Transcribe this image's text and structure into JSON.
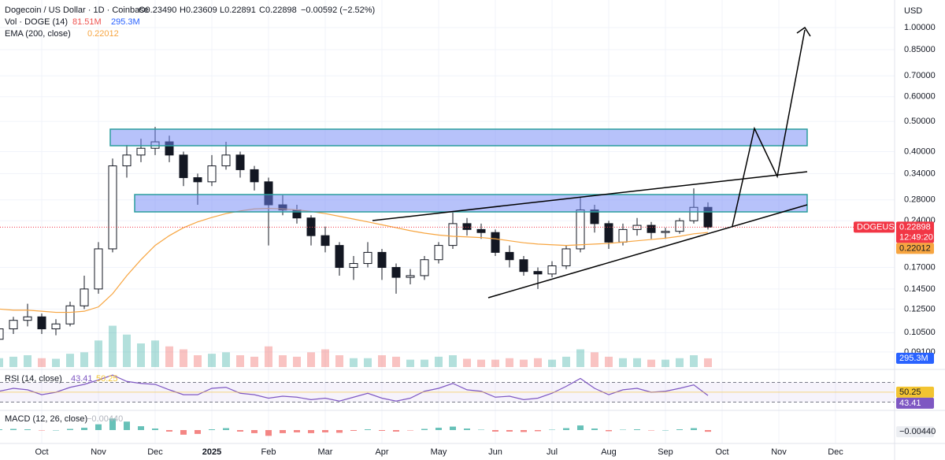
{
  "chart_data": {
    "type": "candlestick",
    "header": {
      "symbol": "Dogecoin / US Dollar · 1D · Coinbase",
      "open": "O0.23490",
      "high": "H0.23609",
      "low": "L0.22891",
      "close": "C0.22898",
      "change": "−0.00592 (−2.52%)"
    },
    "currency": "USD",
    "price_badge": {
      "symbol": "DOGEUSD",
      "countdown": "12:49:20"
    },
    "categories": [
      null,
      null,
      null,
      "Oct",
      null,
      null,
      null,
      "Nov",
      null,
      null,
      null,
      "Dec",
      null,
      null,
      null,
      "2025",
      null,
      null,
      null,
      "Feb",
      null,
      null,
      null,
      "Mar",
      null,
      null,
      null,
      "Apr",
      null,
      null,
      null,
      "May",
      null,
      null,
      null,
      "Jun",
      null,
      null,
      null,
      "Jul",
      null,
      null,
      null,
      "Aug",
      null,
      null,
      null,
      "Sep",
      null,
      null,
      null,
      "Oct",
      null,
      null,
      null,
      "Nov",
      null,
      null,
      null,
      "Dec",
      null,
      null,
      null,
      null
    ],
    "open": [
      0.1,
      0.108,
      0.115,
      0.118,
      0.108,
      0.112,
      0.128,
      0.145,
      0.195,
      0.36,
      0.39,
      0.41,
      0.43,
      0.39,
      0.33,
      0.32,
      0.36,
      0.39,
      0.35,
      0.32,
      0.27,
      0.26,
      0.245,
      0.215,
      0.2,
      0.17,
      0.175,
      0.19,
      0.17,
      0.158,
      0.16,
      0.18,
      0.2,
      0.235,
      0.225,
      0.22,
      0.19,
      0.18,
      0.165,
      0.162,
      0.172,
      0.195,
      0.26,
      0.235,
      0.205,
      0.225,
      0.232,
      0.22,
      0.222,
      0.24,
      0.265,
      null,
      null,
      null,
      null,
      null,
      null,
      null,
      null,
      null,
      null,
      null,
      null,
      null
    ],
    "high": [
      0.11,
      0.118,
      0.13,
      0.121,
      0.116,
      0.132,
      0.16,
      0.205,
      0.38,
      0.42,
      0.44,
      0.48,
      0.45,
      0.4,
      0.34,
      0.39,
      0.43,
      0.4,
      0.36,
      0.33,
      0.29,
      0.27,
      0.25,
      0.23,
      0.205,
      0.185,
      0.205,
      0.195,
      0.175,
      0.168,
      0.185,
      0.205,
      0.255,
      0.245,
      0.235,
      0.225,
      0.2,
      0.185,
      0.17,
      0.178,
      0.2,
      0.285,
      0.27,
      0.24,
      0.235,
      0.245,
      0.238,
      0.228,
      0.245,
      0.305,
      0.275,
      null,
      null,
      null,
      null,
      null,
      null,
      null,
      null,
      null,
      null,
      null,
      null,
      null
    ],
    "low": [
      0.097,
      0.104,
      0.11,
      0.104,
      0.103,
      0.11,
      0.125,
      0.14,
      0.19,
      0.33,
      0.37,
      0.39,
      0.37,
      0.31,
      0.27,
      0.31,
      0.35,
      0.33,
      0.3,
      0.2,
      0.25,
      0.235,
      0.2,
      0.19,
      0.16,
      0.155,
      0.17,
      0.155,
      0.14,
      0.15,
      0.155,
      0.175,
      0.195,
      0.215,
      0.21,
      0.185,
      0.17,
      0.16,
      0.145,
      0.158,
      0.168,
      0.19,
      0.22,
      0.195,
      0.2,
      0.215,
      0.21,
      0.21,
      0.218,
      0.235,
      0.225,
      null,
      null,
      null,
      null,
      null,
      null,
      null,
      null,
      null,
      null,
      null,
      null,
      null
    ],
    "close": [
      0.108,
      0.115,
      0.118,
      0.108,
      0.112,
      0.128,
      0.145,
      0.195,
      0.36,
      0.39,
      0.41,
      0.43,
      0.39,
      0.33,
      0.32,
      0.36,
      0.39,
      0.35,
      0.32,
      0.27,
      0.26,
      0.245,
      0.215,
      0.2,
      0.17,
      0.175,
      0.19,
      0.17,
      0.158,
      0.16,
      0.18,
      0.2,
      0.235,
      0.225,
      0.22,
      0.19,
      0.18,
      0.165,
      0.162,
      0.172,
      0.195,
      0.26,
      0.235,
      0.205,
      0.225,
      0.232,
      0.22,
      0.222,
      0.24,
      0.265,
      0.22898,
      null,
      null,
      null,
      null,
      null,
      null,
      null,
      null,
      null,
      null,
      null,
      null,
      null
    ],
    "up_color": "#ffffff",
    "down_color": "#131722",
    "ylim": [
      0.0805,
      1.226
    ],
    "log_scale": true,
    "yticks": [
      {
        "value": 0.091,
        "label": "0.09100"
      },
      {
        "value": 0.105,
        "label": "0.10500"
      },
      {
        "value": 0.125,
        "label": "0.12500"
      },
      {
        "value": 0.145,
        "label": "0.14500"
      },
      {
        "value": 0.17,
        "label": "0.17000"
      },
      {
        "value": 0.24,
        "label": "0.24000"
      },
      {
        "value": 0.28,
        "label": "0.28000"
      },
      {
        "value": 0.34,
        "label": "0.34000"
      },
      {
        "value": 0.4,
        "label": "0.40000"
      },
      {
        "value": 0.5,
        "label": "0.50000"
      },
      {
        "value": 0.6,
        "label": "0.60000"
      },
      {
        "value": 0.7,
        "label": "0.70000"
      },
      {
        "value": 0.85,
        "label": "0.85000"
      },
      {
        "value": 1,
        "label": "1.00000"
      }
    ],
    "ema": {
      "label": "EMA (200, close)",
      "color": "#f7a540",
      "values": [
        0.125,
        0.124,
        0.124,
        0.123,
        0.122,
        0.122,
        0.123,
        0.127,
        0.14,
        0.16,
        0.18,
        0.2,
        0.215,
        0.228,
        0.238,
        0.246,
        0.253,
        0.258,
        0.262,
        0.263,
        0.262,
        0.26,
        0.257,
        0.253,
        0.248,
        0.243,
        0.238,
        0.233,
        0.228,
        0.223,
        0.219,
        0.216,
        0.214,
        0.213,
        0.212,
        0.21,
        0.207,
        0.204,
        0.202,
        0.201,
        0.2,
        0.201,
        0.202,
        0.203,
        0.205,
        0.207,
        0.209,
        0.211,
        0.214,
        0.218,
        0.22012,
        null,
        null,
        null,
        null,
        null,
        null,
        null,
        null,
        null,
        null,
        null,
        null,
        null
      ]
    },
    "volume": {
      "label": "Vol · DOGE (14)",
      "ma_label": "81.51M",
      "last_label": "295.3M",
      "color": "#2962ff",
      "ylim": [
        0,
        1600000000
      ],
      "values": [
        300000000,
        350000000,
        400000000,
        300000000,
        280000000,
        450000000,
        500000000,
        900000000,
        1400000000,
        1100000000,
        800000000,
        900000000,
        700000000,
        600000000,
        400000000,
        450000000,
        500000000,
        400000000,
        350000000,
        700000000,
        400000000,
        350000000,
        500000000,
        600000000,
        400000000,
        300000000,
        300000000,
        400000000,
        350000000,
        250000000,
        250000000,
        350000000,
        400000000,
        280000000,
        250000000,
        250000000,
        300000000,
        250000000,
        300000000,
        250000000,
        350000000,
        600000000,
        500000000,
        350000000,
        300000000,
        300000000,
        250000000,
        250000000,
        300000000,
        400000000,
        295300000,
        null,
        null,
        null,
        null,
        null,
        null,
        null,
        null,
        null,
        null,
        null,
        null,
        null
      ]
    },
    "rsi": {
      "label": "RSI (14, close)",
      "color": "#7e57c2",
      "ma": 50.25,
      "ma_color": "#f3c431",
      "ylim": [
        10,
        90
      ],
      "bands": [
        70,
        30
      ],
      "values": [
        52,
        58,
        55,
        45,
        50,
        60,
        66,
        75,
        85,
        72,
        68,
        66,
        55,
        45,
        45,
        58,
        60,
        48,
        45,
        38,
        42,
        40,
        35,
        38,
        32,
        40,
        48,
        38,
        32,
        38,
        52,
        58,
        68,
        55,
        52,
        40,
        42,
        35,
        38,
        48,
        62,
        78,
        58,
        45,
        55,
        58,
        50,
        52,
        58,
        65,
        43.41,
        null,
        null,
        null,
        null,
        null,
        null,
        null,
        null,
        null,
        null,
        null,
        null,
        null
      ]
    },
    "macd": {
      "label": "MACD (12, 26, close)",
      "last": {
        "value": -0.0044,
        "label": "−0.00440"
      },
      "ylim": [
        -0.045,
        0.045
      ],
      "up_color": "#26a69a",
      "down_color": "#ef5350",
      "values": [
        0.002,
        0.003,
        0.002,
        -0.001,
        0,
        0.003,
        0.006,
        0.015,
        0.03,
        0.022,
        0.01,
        0.004,
        -0.004,
        -0.012,
        -0.01,
        0.002,
        0.005,
        -0.004,
        -0.008,
        -0.015,
        -0.008,
        -0.006,
        -0.008,
        -0.006,
        -0.007,
        -0.002,
        0.002,
        -0.002,
        -0.004,
        -0.001,
        0.003,
        0.006,
        0.009,
        0.004,
        0.001,
        -0.004,
        -0.004,
        -0.005,
        -0.003,
        0.001,
        0.005,
        0.012,
        0.004,
        -0.003,
        0.001,
        0.002,
        -0.001,
        0,
        0.002,
        0.005,
        -0.0044,
        null,
        null,
        null,
        null,
        null,
        null,
        null,
        null,
        null,
        null,
        null,
        null,
        null
      ]
    }
  }
}
